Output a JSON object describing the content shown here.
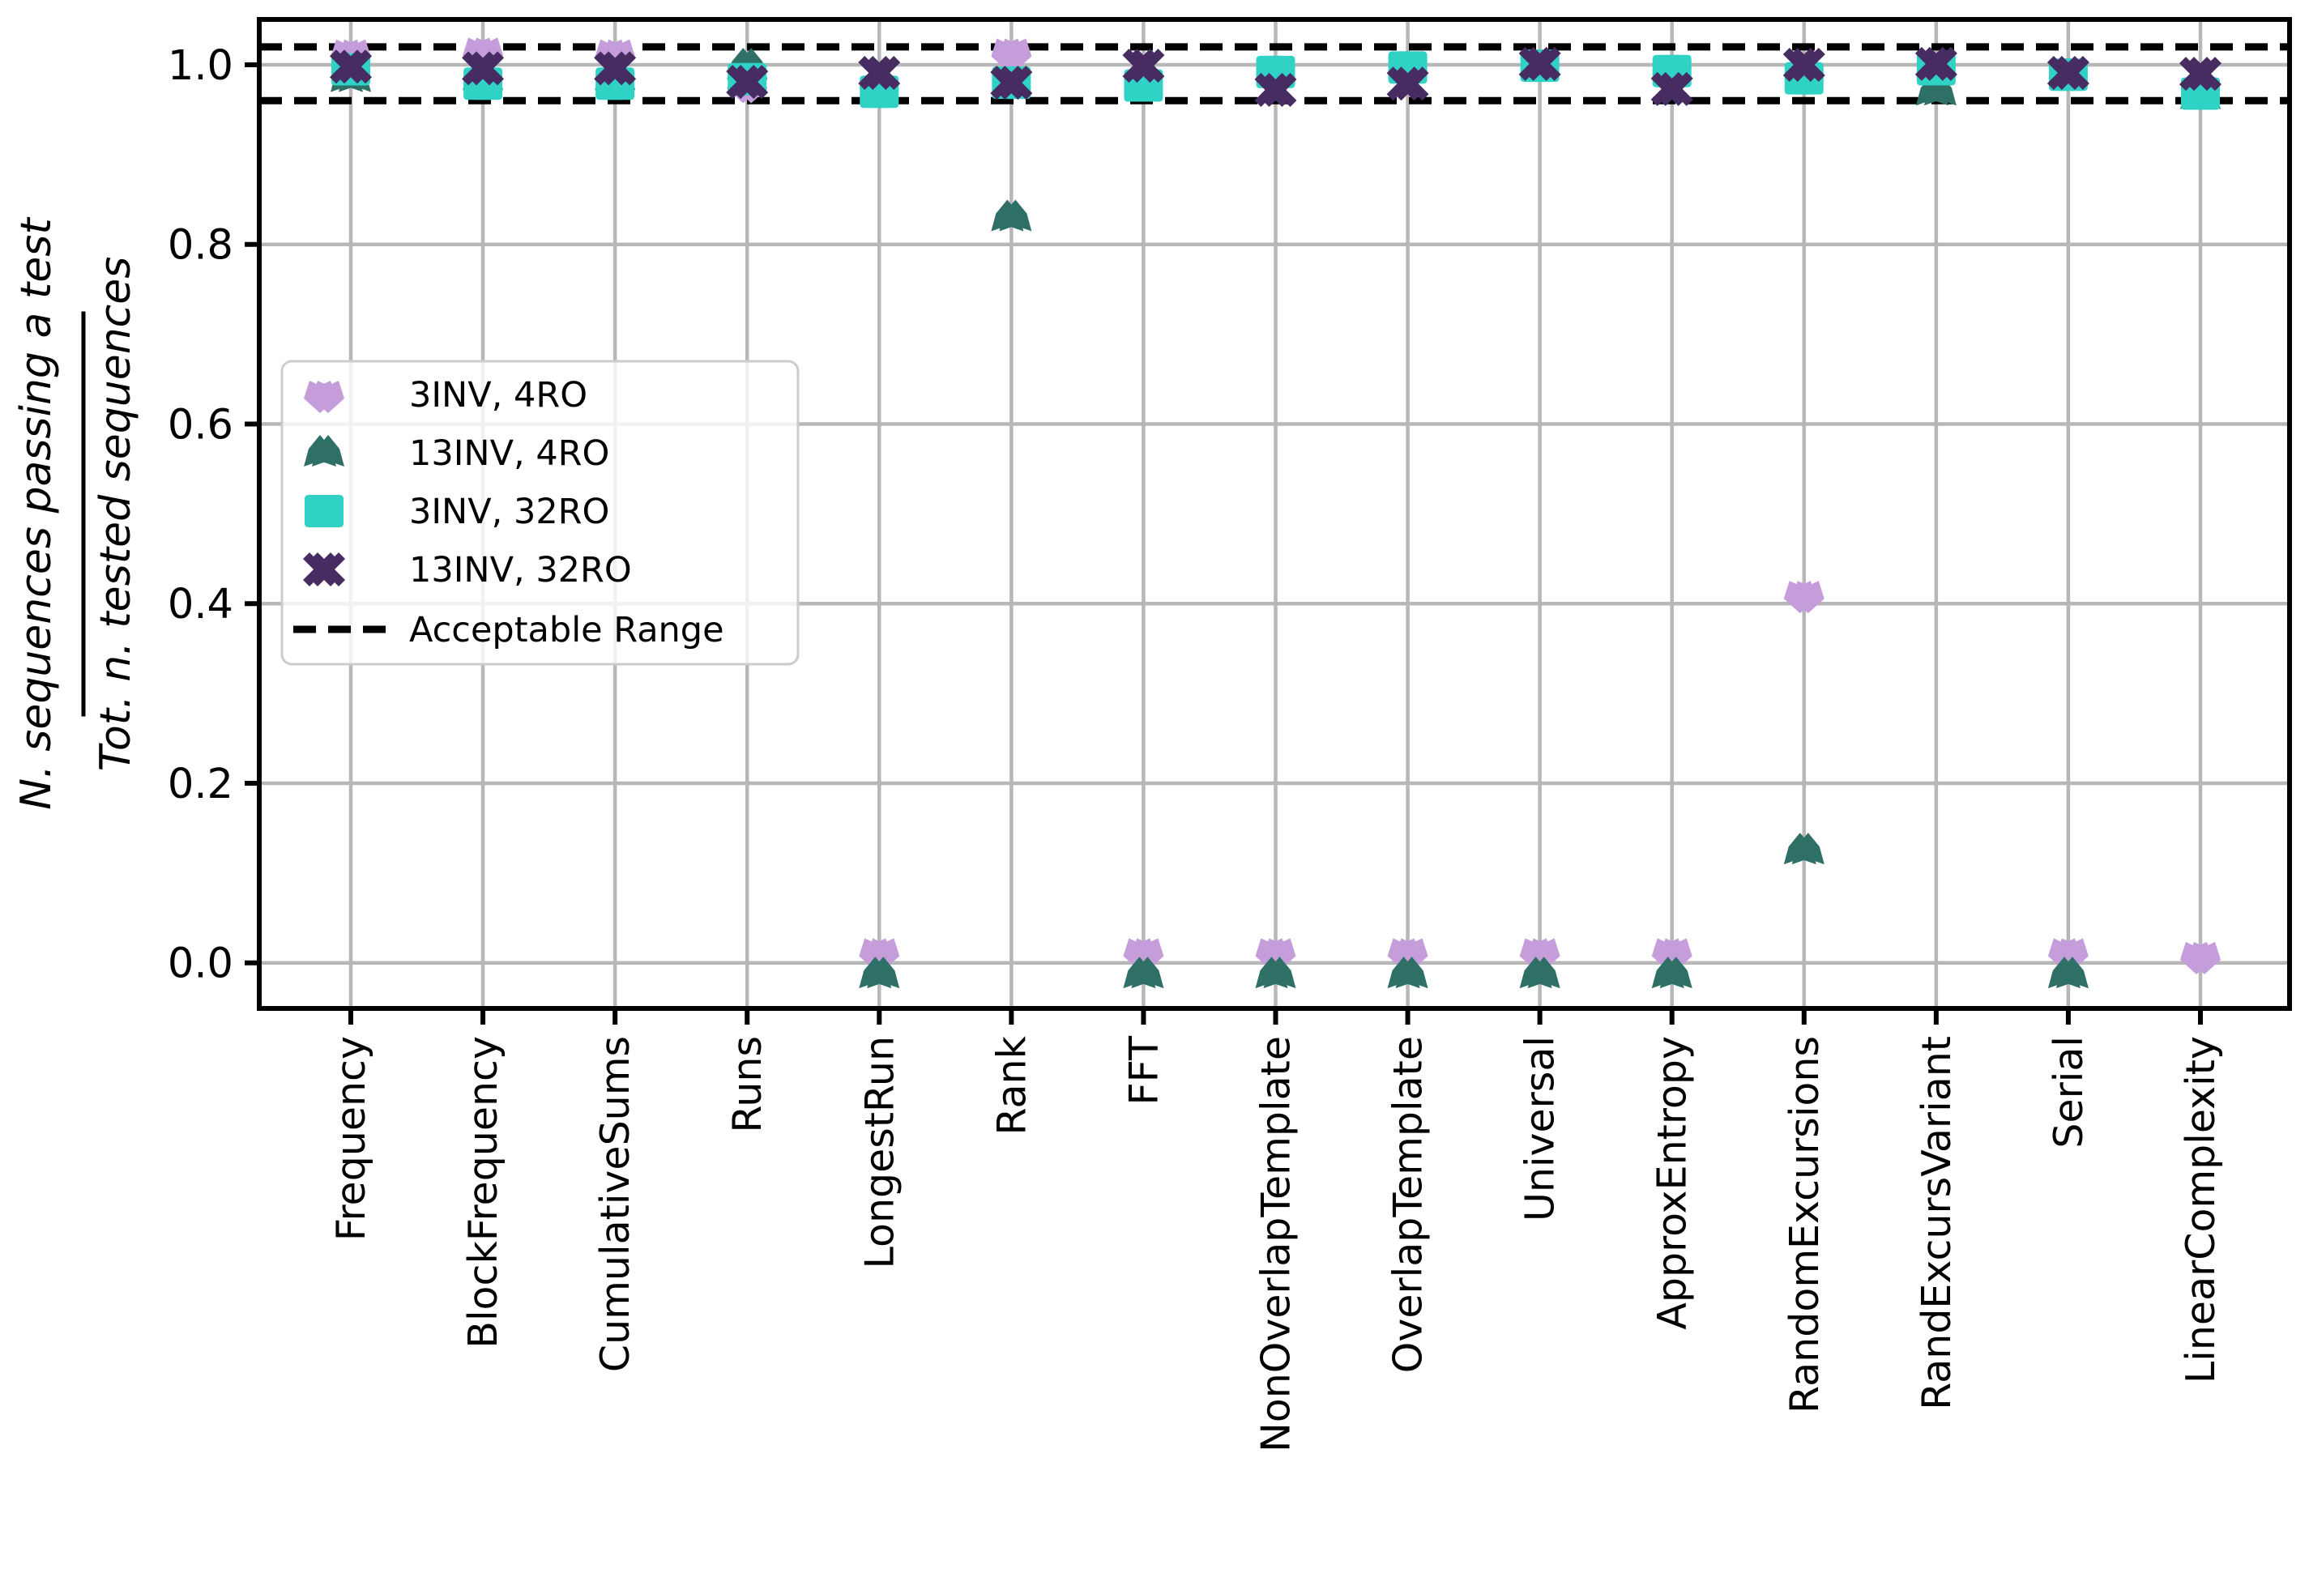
{
  "chart_data": {
    "type": "scatter",
    "title": "",
    "xlabel": "",
    "ylabel_numerator": "N. sequences passing a test",
    "ylabel_denominator": "Tot. n. tested sequences",
    "categories": [
      "Frequency",
      "BlockFrequency",
      "CumulativeSums",
      "Runs",
      "LongestRun",
      "Rank",
      "FFT",
      "NonOverlapTemplate",
      "OverlapTemplate",
      "Universal",
      "ApproxEntropy",
      "RandomExcursions",
      "RandExcursVariant",
      "Serial",
      "LinearComplexity"
    ],
    "yticks": [
      "0.0",
      "0.2",
      "0.4",
      "0.6",
      "0.8",
      "1.0"
    ],
    "ytick_values": [
      0.0,
      0.2,
      0.4,
      0.6,
      0.8,
      1.0
    ],
    "ylim": [
      -0.051,
      1.051
    ],
    "grid": true,
    "acceptable_range": {
      "label": "Acceptable Range",
      "low": 0.9601,
      "high": 1.0199,
      "color": "#000000"
    },
    "series": [
      {
        "name": "3INV, 4RO",
        "marker": "pentagon-down",
        "color": "#c59dda",
        "values": [
          1.013,
          1.015,
          1.013,
          0.978,
          0.012,
          1.014,
          0.012,
          0.012,
          0.012,
          0.012,
          0.012,
          0.41,
          0.993,
          0.012,
          0.008
        ]
      },
      {
        "name": "13INV, 4RO",
        "marker": "triangle-up-notch",
        "color": "#2e6f66",
        "values": [
          0.985,
          0.987,
          0.987,
          0.999,
          -0.013,
          0.83,
          -0.013,
          -0.013,
          -0.013,
          -0.013,
          -0.013,
          0.125,
          0.97,
          -0.013,
          0.966
        ]
      },
      {
        "name": "3INV, 32RO",
        "marker": "square",
        "color": "#30d2c5",
        "values": [
          0.995,
          0.979,
          0.979,
          0.984,
          0.97,
          0.98,
          0.977,
          0.992,
          0.997,
          0.999,
          0.993,
          0.985,
          0.995,
          0.989,
          0.968
        ]
      },
      {
        "name": "13INV, 32RO",
        "marker": "thick-x",
        "color": "#472c62",
        "values": [
          0.998,
          0.996,
          0.996,
          0.981,
          0.991,
          0.98,
          0.999,
          0.972,
          0.979,
          1.001,
          0.973,
          1.0,
          1.001,
          0.991,
          0.99
        ]
      }
    ],
    "legend_position": "upper-left-inside",
    "grid_color": "#b7b7b7",
    "spine_color": "#000000"
  }
}
